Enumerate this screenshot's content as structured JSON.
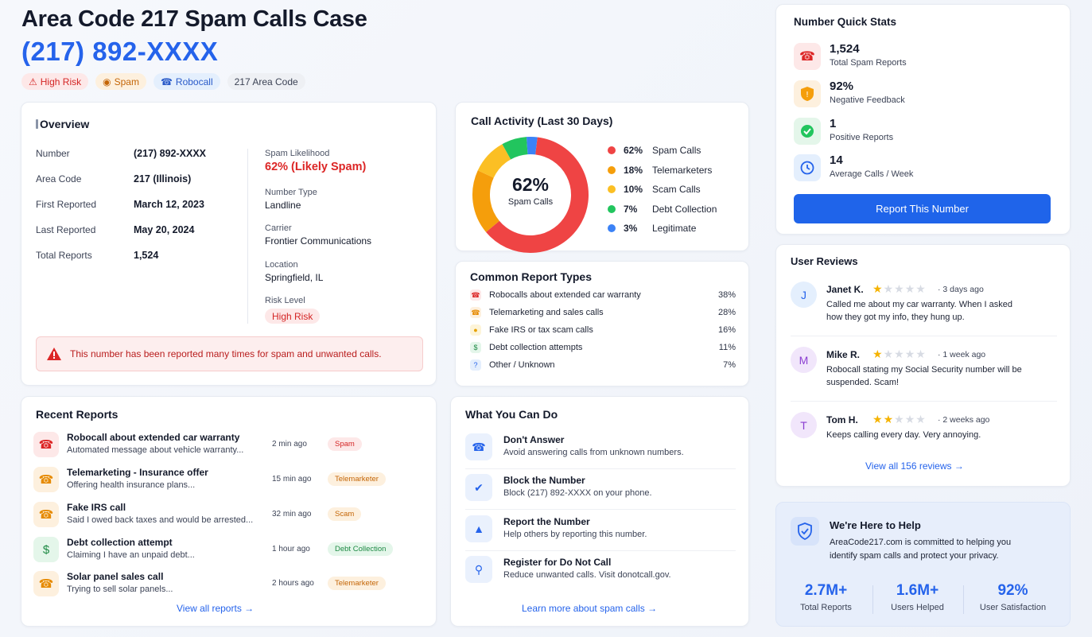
{
  "header": {
    "title": "Area Code 217 Spam Calls Case",
    "number": "(217) 892-XXXX",
    "badges": [
      "High Risk",
      "Spam",
      "Robocall",
      "217 Area Code"
    ]
  },
  "overview": {
    "title": "Overview",
    "rows": [
      {
        "label": "Number",
        "value": "(217) 892-XXXX"
      },
      {
        "label": "Area Code",
        "value": "217 (Illinois)"
      },
      {
        "label": "First Reported",
        "value": "March 12, 2023"
      },
      {
        "label": "Last Reported",
        "value": "May 20, 2024"
      },
      {
        "label": "Total Reports",
        "value": "1,524"
      }
    ],
    "spam_likelihood_label": "Spam Likelihood",
    "spam_likelihood_value": "62% (Likely Spam)",
    "details": [
      {
        "label": "Number Type",
        "value": "Landline"
      },
      {
        "label": "Carrier",
        "value": "Frontier Communications"
      },
      {
        "label": "Location",
        "value": "Springfield, IL"
      }
    ],
    "risk_level_label": "Risk Level",
    "risk_level_value": "High Risk",
    "alert": "This number has been reported many times for spam and unwanted calls."
  },
  "call_activity": {
    "title": "Call Activity (Last 30 Days)",
    "center_value": "62%",
    "center_label": "Spam Calls",
    "legend": [
      {
        "pct": "62%",
        "label": "Spam Calls",
        "color": "#ef4444",
        "value": 62
      },
      {
        "pct": "18%",
        "label": "Telemarketers",
        "color": "#f59e0b",
        "value": 18
      },
      {
        "pct": "10%",
        "label": "Scam Calls",
        "color": "#fbbf24",
        "value": 10
      },
      {
        "pct": "7%",
        "label": "Debt Collection",
        "color": "#22c55e",
        "value": 7
      },
      {
        "pct": "3%",
        "label": "Legitimate",
        "color": "#3b82f6",
        "value": 3
      }
    ]
  },
  "report_types": {
    "title": "Common Report Types",
    "items": [
      {
        "label": "Robocalls about extended car warranty",
        "pct": "38%"
      },
      {
        "label": "Telemarketing and sales calls",
        "pct": "28%"
      },
      {
        "label": "Fake IRS or tax scam calls",
        "pct": "16%"
      },
      {
        "label": "Debt collection attempts",
        "pct": "11%"
      },
      {
        "label": "Other / Unknown",
        "pct": "7%"
      }
    ]
  },
  "recent_reports": {
    "title": "Recent Reports",
    "items": [
      {
        "title": "Robocall about extended car warranty",
        "subtitle": "Automated message about vehicle warranty...",
        "time": "2 min ago",
        "tag": "Spam"
      },
      {
        "title": "Telemarketing - Insurance offer",
        "subtitle": "Offering health insurance plans...",
        "time": "15 min ago",
        "tag": "Telemarketer"
      },
      {
        "title": "Fake IRS call",
        "subtitle": "Said I owed back taxes and would be arrested...",
        "time": "32 min ago",
        "tag": "Scam"
      },
      {
        "title": "Debt collection attempt",
        "subtitle": "Claiming I have an unpaid debt...",
        "time": "1 hour ago",
        "tag": "Debt Collection"
      },
      {
        "title": "Solar panel sales call",
        "subtitle": "Trying to sell solar panels...",
        "time": "2 hours ago",
        "tag": "Telemarketer"
      }
    ],
    "view_all": "View all reports"
  },
  "what_to_do": {
    "title": "What You Can Do",
    "items": [
      {
        "title": "Don't Answer",
        "subtitle": "Avoid answering calls from unknown numbers."
      },
      {
        "title": "Block the Number",
        "subtitle": "Block (217) 892-XXXX on your phone."
      },
      {
        "title": "Report the Number",
        "subtitle": "Help others by reporting this number."
      },
      {
        "title": "Register for Do Not Call",
        "subtitle": "Reduce unwanted calls. Visit donotcall.gov."
      }
    ],
    "learn_more": "Learn more about spam calls"
  },
  "quick_stats": {
    "title": "Number Quick Stats",
    "items": [
      {
        "value": "1,524",
        "label": "Total Spam Reports"
      },
      {
        "value": "92%",
        "label": "Negative Feedback"
      },
      {
        "value": "1",
        "label": "Positive Reports"
      },
      {
        "value": "14",
        "label": "Average Calls / Week"
      }
    ],
    "report_button": "Report This Number"
  },
  "reviews": {
    "title": "User Reviews",
    "items": [
      {
        "initial": "J",
        "name": "Janet K.",
        "stars": 1,
        "time": "3 days ago",
        "text": "Called me about my car warranty. When I asked how they got my info, they hung up."
      },
      {
        "initial": "M",
        "name": "Mike R.",
        "stars": 1,
        "time": "1 week ago",
        "text": "Robocall stating my Social Security number will be suspended. Scam!"
      },
      {
        "initial": "T",
        "name": "Tom H.",
        "stars": 2,
        "time": "2 weeks ago",
        "text": "Keeps calling every day. Very annoying."
      }
    ],
    "view_all": "View all 156 reviews"
  },
  "help": {
    "title": "We're Here to Help",
    "text": "AreaCode217.com is committed to helping you identify spam calls and protect your privacy.",
    "stats": [
      {
        "value": "2.7M+",
        "label": "Total Reports"
      },
      {
        "value": "1.6M+",
        "label": "Users Helped"
      },
      {
        "value": "92%",
        "label": "User Satisfaction"
      }
    ]
  }
}
